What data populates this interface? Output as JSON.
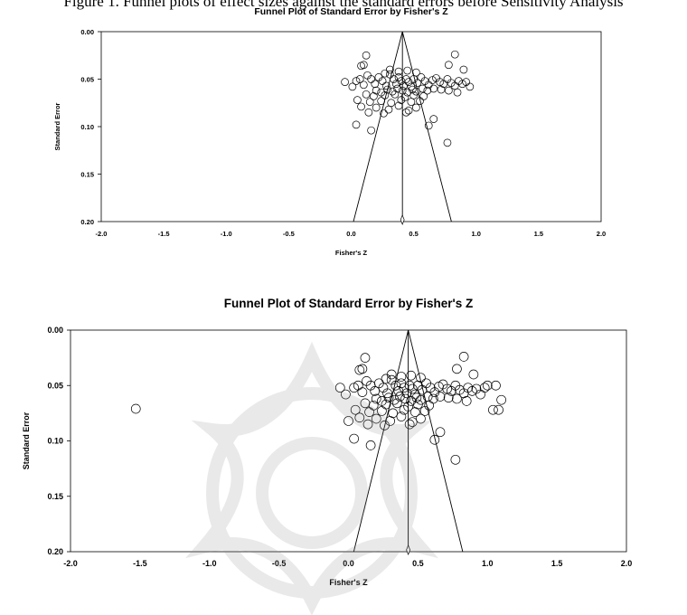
{
  "caption": "Figure 1. Funnel plots of effect sizes against the standard errors before Sensitivity Analysis",
  "chart_data": [
    {
      "type": "scatter",
      "title": "Funnel Plot of Standard Error by Fisher's Z",
      "xlabel": "Fisher's Z",
      "ylabel": "Standard Error",
      "xlim": [
        -2.0,
        2.0
      ],
      "ylim": [
        0.0,
        0.2
      ],
      "y_inverted": true,
      "x_ticks": [
        "-2.0",
        "-1.5",
        "-1.0",
        "-0.5",
        "0.0",
        "0.5",
        "1.0",
        "1.5",
        "2.0"
      ],
      "y_ticks": [
        "0.00",
        "0.05",
        "0.10",
        "0.15",
        "0.20"
      ],
      "summary_effect": 0.41,
      "points": [
        [
          0.12,
          0.025
        ],
        [
          0.1,
          0.035
        ],
        [
          0.08,
          0.036
        ],
        [
          0.83,
          0.024
        ],
        [
          0.78,
          0.035
        ],
        [
          0.9,
          0.04
        ],
        [
          -0.05,
          0.053
        ],
        [
          0.01,
          0.058
        ],
        [
          0.04,
          0.052
        ],
        [
          0.07,
          0.05
        ],
        [
          0.1,
          0.056
        ],
        [
          0.13,
          0.046
        ],
        [
          0.16,
          0.05
        ],
        [
          0.19,
          0.055
        ],
        [
          0.22,
          0.048
        ],
        [
          0.25,
          0.052
        ],
        [
          0.28,
          0.057
        ],
        [
          0.31,
          0.045
        ],
        [
          0.34,
          0.05
        ],
        [
          0.36,
          0.055
        ],
        [
          0.38,
          0.048
        ],
        [
          0.4,
          0.052
        ],
        [
          0.42,
          0.057
        ],
        [
          0.44,
          0.05
        ],
        [
          0.46,
          0.053
        ],
        [
          0.48,
          0.058
        ],
        [
          0.5,
          0.05
        ],
        [
          0.53,
          0.054
        ],
        [
          0.56,
          0.048
        ],
        [
          0.59,
          0.052
        ],
        [
          0.62,
          0.056
        ],
        [
          0.65,
          0.051
        ],
        [
          0.68,
          0.049
        ],
        [
          0.71,
          0.053
        ],
        [
          0.74,
          0.055
        ],
        [
          0.77,
          0.05
        ],
        [
          0.8,
          0.054
        ],
        [
          0.83,
          0.057
        ],
        [
          0.86,
          0.052
        ],
        [
          0.89,
          0.055
        ],
        [
          0.92,
          0.053
        ],
        [
          0.95,
          0.058
        ],
        [
          0.2,
          0.062
        ],
        [
          0.24,
          0.064
        ],
        [
          0.29,
          0.061
        ],
        [
          0.33,
          0.063
        ],
        [
          0.37,
          0.06
        ],
        [
          0.41,
          0.062
        ],
        [
          0.45,
          0.064
        ],
        [
          0.49,
          0.061
        ],
        [
          0.52,
          0.063
        ],
        [
          0.57,
          0.06
        ],
        [
          0.61,
          0.062
        ],
        [
          0.66,
          0.06
        ],
        [
          0.72,
          0.061
        ],
        [
          0.78,
          0.062
        ],
        [
          0.85,
          0.064
        ],
        [
          0.12,
          0.066
        ],
        [
          0.18,
          0.068
        ],
        [
          0.27,
          0.067
        ],
        [
          0.35,
          0.066
        ],
        [
          0.43,
          0.069
        ],
        [
          0.5,
          0.067
        ],
        [
          0.58,
          0.068
        ],
        [
          0.31,
          0.04
        ],
        [
          0.38,
          0.042
        ],
        [
          0.45,
          0.041
        ],
        [
          0.52,
          0.043
        ],
        [
          0.27,
          0.044
        ],
        [
          0.05,
          0.072
        ],
        [
          0.15,
          0.074
        ],
        [
          0.24,
          0.073
        ],
        [
          0.32,
          0.075
        ],
        [
          0.4,
          0.072
        ],
        [
          0.48,
          0.074
        ],
        [
          0.55,
          0.073
        ],
        [
          0.08,
          0.079
        ],
        [
          0.2,
          0.08
        ],
        [
          0.3,
          0.082
        ],
        [
          0.38,
          0.078
        ],
        [
          0.46,
          0.083
        ],
        [
          0.52,
          0.08
        ],
        [
          0.14,
          0.085
        ],
        [
          0.26,
          0.086
        ],
        [
          0.44,
          0.085
        ],
        [
          0.04,
          0.098
        ],
        [
          0.16,
          0.104
        ],
        [
          0.66,
          0.092
        ],
        [
          0.62,
          0.099
        ],
        [
          0.77,
          0.117
        ]
      ]
    },
    {
      "type": "scatter",
      "title": "Funnel Plot of Standard Error by Fisher's Z",
      "xlabel": "Fisher's Z",
      "ylabel": "Standard Error",
      "xlim": [
        -2.0,
        2.0
      ],
      "ylim": [
        0.0,
        0.2
      ],
      "y_inverted": true,
      "x_ticks": [
        "-2.0",
        "-1.5",
        "-1.0",
        "-0.5",
        "0.0",
        "0.5",
        "1.0",
        "1.5",
        "2.0"
      ],
      "y_ticks": [
        "0.00",
        "0.05",
        "0.10",
        "0.15",
        "0.20"
      ],
      "summary_effect": 0.43,
      "points": [
        [
          -1.53,
          0.071
        ],
        [
          -0.06,
          0.052
        ],
        [
          -0.02,
          0.058
        ],
        [
          0.04,
          0.052
        ],
        [
          0.0,
          0.082
        ],
        [
          0.12,
          0.025
        ],
        [
          0.1,
          0.035
        ],
        [
          0.08,
          0.036
        ],
        [
          0.83,
          0.024
        ],
        [
          0.78,
          0.035
        ],
        [
          0.9,
          0.04
        ],
        [
          0.07,
          0.05
        ],
        [
          0.1,
          0.056
        ],
        [
          0.13,
          0.046
        ],
        [
          0.16,
          0.05
        ],
        [
          0.19,
          0.055
        ],
        [
          0.22,
          0.048
        ],
        [
          0.25,
          0.052
        ],
        [
          0.28,
          0.057
        ],
        [
          0.31,
          0.045
        ],
        [
          0.34,
          0.05
        ],
        [
          0.36,
          0.055
        ],
        [
          0.38,
          0.048
        ],
        [
          0.4,
          0.052
        ],
        [
          0.42,
          0.057
        ],
        [
          0.44,
          0.05
        ],
        [
          0.46,
          0.053
        ],
        [
          0.48,
          0.058
        ],
        [
          0.5,
          0.05
        ],
        [
          0.53,
          0.054
        ],
        [
          0.56,
          0.048
        ],
        [
          0.59,
          0.052
        ],
        [
          0.62,
          0.056
        ],
        [
          0.65,
          0.051
        ],
        [
          0.68,
          0.049
        ],
        [
          0.71,
          0.053
        ],
        [
          0.74,
          0.055
        ],
        [
          0.77,
          0.05
        ],
        [
          0.8,
          0.054
        ],
        [
          0.83,
          0.057
        ],
        [
          0.86,
          0.052
        ],
        [
          0.89,
          0.055
        ],
        [
          0.92,
          0.053
        ],
        [
          0.95,
          0.058
        ],
        [
          0.98,
          0.052
        ],
        [
          1.0,
          0.05
        ],
        [
          1.06,
          0.05
        ],
        [
          1.1,
          0.063
        ],
        [
          1.04,
          0.072
        ],
        [
          1.08,
          0.072
        ],
        [
          0.2,
          0.062
        ],
        [
          0.24,
          0.064
        ],
        [
          0.29,
          0.061
        ],
        [
          0.33,
          0.063
        ],
        [
          0.37,
          0.06
        ],
        [
          0.41,
          0.062
        ],
        [
          0.45,
          0.064
        ],
        [
          0.49,
          0.061
        ],
        [
          0.52,
          0.063
        ],
        [
          0.57,
          0.06
        ],
        [
          0.61,
          0.062
        ],
        [
          0.66,
          0.06
        ],
        [
          0.72,
          0.061
        ],
        [
          0.78,
          0.062
        ],
        [
          0.85,
          0.064
        ],
        [
          0.12,
          0.066
        ],
        [
          0.18,
          0.068
        ],
        [
          0.27,
          0.067
        ],
        [
          0.35,
          0.066
        ],
        [
          0.43,
          0.069
        ],
        [
          0.5,
          0.067
        ],
        [
          0.58,
          0.068
        ],
        [
          0.31,
          0.04
        ],
        [
          0.38,
          0.042
        ],
        [
          0.45,
          0.041
        ],
        [
          0.52,
          0.043
        ],
        [
          0.27,
          0.044
        ],
        [
          0.05,
          0.072
        ],
        [
          0.15,
          0.074
        ],
        [
          0.24,
          0.073
        ],
        [
          0.32,
          0.075
        ],
        [
          0.4,
          0.072
        ],
        [
          0.48,
          0.074
        ],
        [
          0.55,
          0.073
        ],
        [
          0.08,
          0.079
        ],
        [
          0.2,
          0.08
        ],
        [
          0.3,
          0.082
        ],
        [
          0.38,
          0.078
        ],
        [
          0.46,
          0.083
        ],
        [
          0.52,
          0.08
        ],
        [
          0.14,
          0.085
        ],
        [
          0.26,
          0.086
        ],
        [
          0.44,
          0.085
        ],
        [
          0.04,
          0.098
        ],
        [
          0.16,
          0.104
        ],
        [
          0.66,
          0.092
        ],
        [
          0.62,
          0.099
        ],
        [
          0.77,
          0.117
        ]
      ]
    }
  ]
}
